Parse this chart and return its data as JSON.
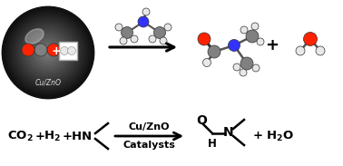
{
  "background_color": "#ffffff",
  "equation_text": {
    "reactants": "CO$_2$ + H$_2$ + HN",
    "arrow_top": "Cu/ZnO",
    "arrow_bottom": "Catalysts",
    "products": "+ H$_2$O"
  },
  "sphere_color_outer": "#222222",
  "sphere_color_inner": "#888888",
  "sphere_label": "Cu/ZnO",
  "atom_colors": {
    "C": "#808080",
    "O": "#ff2200",
    "H": "#e8e8e8",
    "N": "#3333ff",
    "Cu": "#cc8844"
  },
  "figsize": [
    3.78,
    1.83
  ],
  "dpi": 100
}
